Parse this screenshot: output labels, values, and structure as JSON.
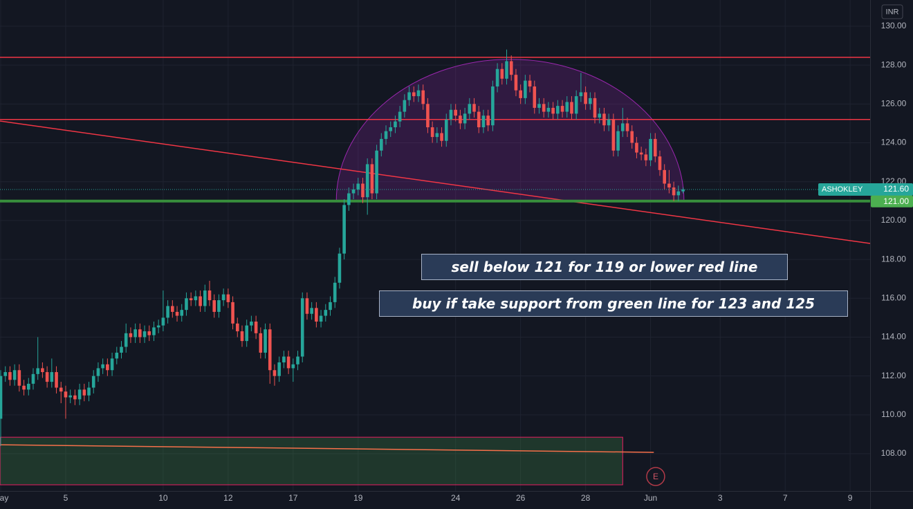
{
  "chart_data": {
    "type": "candlestick",
    "currency": "INR",
    "series": [
      {
        "name": "ASHOKLEY",
        "up_color": "#26a69a",
        "down_color": "#ef5350",
        "last_label": "121.60",
        "open": [
          109.8,
          112.0,
          112.2,
          111.8,
          112.3,
          111.5,
          111.3,
          111.6,
          112.1,
          112.4,
          112.2,
          111.7,
          112.2,
          111.4,
          111.2,
          110.9,
          111.0,
          110.8,
          111.3,
          111.0,
          111.4,
          112.0,
          112.4,
          112.6,
          112.3,
          112.9,
          113.2,
          113.5,
          114.2,
          114.0,
          114.4,
          114.0,
          114.3,
          114.1,
          114.5,
          114.6,
          115.0,
          115.6,
          115.3,
          115.1,
          115.4,
          116.0,
          115.9,
          116.1,
          115.6,
          116.4,
          115.9,
          115.3,
          115.9,
          116.2,
          115.8,
          114.7,
          114.3,
          113.8,
          114.6,
          114.8,
          114.2,
          113.2,
          114.4,
          112.3,
          112.0,
          112.7,
          113.0,
          112.4,
          112.6,
          113.0,
          116.0,
          115.2,
          115.5,
          114.8,
          115.1,
          115.4,
          115.8,
          116.8,
          118.3,
          120.8,
          121.4,
          121.6,
          121.9,
          121.2,
          122.9,
          121.4,
          123.6,
          124.2,
          124.6,
          124.8,
          125.1,
          125.6,
          126.2,
          126.6,
          126.4,
          126.7,
          126.0,
          124.8,
          124.3,
          124.5,
          124.1,
          125.2,
          125.7,
          125.4,
          125.0,
          125.5,
          126.0,
          125.6,
          124.8,
          125.4,
          124.9,
          126.9,
          127.8,
          127.3,
          128.2,
          127.5,
          126.7,
          126.3,
          127.2,
          126.9,
          125.8,
          126.0,
          125.6,
          125.8,
          125.5,
          125.9,
          125.6,
          126.1,
          125.5,
          126.4,
          126.6,
          126.0,
          126.3,
          125.3,
          125.5,
          124.9,
          125.2,
          123.6,
          124.6,
          125.0,
          124.6,
          124.0,
          123.5,
          123.4,
          123.1,
          124.2,
          123.3,
          122.6,
          121.9,
          121.7,
          121.3,
          121.5
        ],
        "high": [
          112.3,
          112.5,
          112.5,
          112.6,
          112.6,
          111.8,
          111.9,
          112.4,
          114.0,
          112.7,
          112.5,
          112.9,
          112.5,
          111.7,
          111.5,
          111.3,
          111.3,
          111.6,
          111.6,
          111.7,
          112.3,
          112.7,
          112.9,
          112.9,
          113.2,
          113.5,
          113.8,
          114.7,
          114.5,
          114.7,
          114.7,
          114.6,
          114.6,
          114.8,
          114.9,
          116.4,
          115.9,
          115.9,
          115.6,
          115.7,
          116.3,
          116.3,
          116.4,
          116.4,
          116.7,
          116.9,
          116.2,
          116.2,
          116.5,
          116.5,
          116.1,
          115.0,
          114.6,
          114.9,
          115.1,
          115.1,
          114.5,
          114.7,
          114.7,
          112.6,
          113.0,
          113.3,
          113.3,
          112.9,
          113.3,
          116.3,
          116.3,
          115.8,
          115.8,
          115.4,
          115.7,
          116.1,
          117.1,
          118.6,
          121.1,
          121.7,
          121.9,
          122.2,
          122.2,
          123.2,
          123.2,
          123.9,
          124.5,
          124.9,
          125.1,
          125.4,
          125.9,
          126.5,
          126.9,
          126.9,
          127.0,
          127.0,
          126.3,
          125.1,
          124.8,
          124.8,
          125.5,
          126.0,
          126.0,
          125.7,
          125.8,
          126.3,
          126.3,
          125.9,
          125.7,
          125.7,
          127.2,
          128.1,
          128.1,
          128.8,
          128.5,
          127.8,
          127.0,
          127.5,
          127.5,
          127.2,
          126.3,
          126.3,
          126.1,
          126.1,
          126.2,
          126.2,
          126.4,
          126.4,
          126.7,
          127.6,
          126.9,
          126.6,
          126.6,
          125.8,
          125.8,
          125.5,
          125.5,
          124.9,
          125.8,
          125.3,
          124.9,
          124.3,
          123.8,
          123.7,
          124.5,
          124.5,
          123.6,
          122.9,
          122.6,
          122.0,
          121.8,
          121.7
        ],
        "low": [
          108.4,
          111.7,
          111.5,
          111.5,
          111.2,
          111.0,
          111.0,
          111.3,
          111.8,
          111.9,
          111.4,
          111.4,
          111.1,
          110.6,
          109.8,
          110.6,
          110.5,
          110.5,
          110.7,
          110.7,
          111.1,
          111.7,
          112.1,
          112.0,
          112.0,
          112.6,
          112.9,
          113.2,
          113.7,
          113.7,
          113.7,
          113.7,
          113.8,
          113.8,
          114.2,
          114.3,
          114.7,
          115.0,
          114.8,
          114.8,
          115.1,
          115.6,
          115.6,
          115.3,
          115.3,
          115.6,
          115.0,
          115.0,
          115.6,
          115.5,
          114.4,
          114.0,
          113.5,
          113.5,
          114.3,
          113.9,
          112.9,
          112.9,
          111.6,
          111.5,
          111.7,
          112.4,
          112.1,
          111.7,
          112.3,
          112.7,
          114.9,
          114.9,
          114.5,
          114.5,
          114.8,
          115.1,
          115.5,
          116.5,
          118.0,
          120.5,
          121.1,
          121.3,
          120.9,
          120.3,
          121.1,
          121.1,
          123.3,
          123.9,
          124.3,
          124.5,
          124.8,
          125.3,
          125.9,
          126.1,
          126.1,
          125.7,
          124.5,
          124.0,
          124.0,
          123.8,
          123.8,
          124.9,
          125.1,
          124.7,
          124.7,
          125.2,
          125.3,
          124.5,
          124.5,
          124.6,
          124.6,
          126.6,
          127.0,
          127.0,
          127.2,
          126.4,
          126.0,
          126.0,
          126.6,
          125.5,
          125.5,
          125.3,
          125.3,
          125.2,
          125.2,
          125.3,
          125.3,
          125.2,
          125.2,
          126.1,
          125.7,
          125.7,
          125.0,
          125.0,
          124.6,
          124.6,
          123.3,
          123.3,
          124.3,
          124.3,
          123.7,
          123.2,
          123.1,
          122.8,
          122.8,
          123.0,
          122.3,
          121.6,
          121.4,
          121.0,
          121.0,
          121.4
        ],
        "close": [
          112.0,
          112.2,
          111.8,
          112.3,
          111.5,
          111.3,
          111.6,
          112.1,
          112.4,
          112.2,
          111.7,
          112.2,
          111.4,
          111.2,
          110.9,
          111.0,
          110.8,
          111.3,
          111.0,
          111.4,
          112.0,
          112.4,
          112.6,
          112.3,
          112.9,
          113.2,
          113.5,
          114.2,
          114.0,
          114.4,
          114.0,
          114.3,
          114.1,
          114.5,
          114.6,
          115.0,
          115.6,
          115.3,
          115.1,
          115.4,
          116.0,
          115.9,
          116.1,
          115.6,
          116.4,
          115.9,
          115.3,
          115.9,
          116.2,
          115.8,
          114.7,
          114.3,
          113.8,
          114.6,
          114.8,
          114.2,
          113.2,
          114.4,
          112.3,
          112.0,
          112.7,
          113.0,
          112.4,
          112.6,
          113.0,
          116.0,
          115.2,
          115.5,
          114.8,
          115.1,
          115.4,
          115.8,
          116.8,
          118.3,
          120.8,
          121.4,
          121.6,
          121.9,
          121.2,
          122.9,
          121.4,
          123.6,
          124.2,
          124.6,
          124.8,
          125.1,
          125.6,
          126.2,
          126.6,
          126.4,
          126.7,
          126.0,
          124.8,
          124.3,
          124.5,
          124.1,
          125.2,
          125.7,
          125.4,
          125.0,
          125.5,
          126.0,
          125.6,
          124.8,
          125.4,
          124.9,
          126.9,
          127.8,
          127.3,
          128.2,
          127.5,
          126.7,
          126.3,
          127.2,
          126.9,
          125.8,
          126.0,
          125.6,
          125.8,
          125.5,
          125.9,
          125.6,
          126.1,
          125.5,
          126.4,
          126.6,
          126.0,
          126.3,
          125.3,
          125.5,
          124.9,
          125.2,
          123.6,
          124.6,
          125.0,
          124.6,
          124.0,
          123.5,
          123.4,
          123.1,
          124.2,
          123.3,
          122.6,
          121.9,
          121.7,
          121.3,
          121.5,
          121.6
        ]
      }
    ],
    "xlim": [
      -0.15,
      187.3
    ],
    "ylim": [
      106.08,
      131.35
    ],
    "xticks": [
      {
        "value": 0,
        "label": "May"
      },
      {
        "value": 14,
        "label": "5"
      },
      {
        "value": 35,
        "label": "10"
      },
      {
        "value": 49,
        "label": "12"
      },
      {
        "value": 63,
        "label": "17"
      },
      {
        "value": 77,
        "label": "19"
      },
      {
        "value": 98,
        "label": "24"
      },
      {
        "value": 112,
        "label": "26"
      },
      {
        "value": 126,
        "label": "28"
      },
      {
        "value": 140,
        "label": "Jun"
      },
      {
        "value": 155,
        "label": "3"
      },
      {
        "value": 169,
        "label": "7"
      },
      {
        "value": 183,
        "label": "9"
      }
    ],
    "yticks": [
      {
        "value": 108,
        "label": "108.00"
      },
      {
        "value": 110,
        "label": "110.00"
      },
      {
        "value": 112,
        "label": "112.00"
      },
      {
        "value": 114,
        "label": "114.00"
      },
      {
        "value": 116,
        "label": "116.00"
      },
      {
        "value": 118,
        "label": "118.00"
      },
      {
        "value": 120,
        "label": "120.00"
      },
      {
        "value": 122,
        "label": "122.00"
      },
      {
        "value": 124,
        "label": "124.00"
      },
      {
        "value": 126,
        "label": "126.00"
      },
      {
        "value": 128,
        "label": "128.00"
      },
      {
        "value": 130,
        "label": "130.00"
      }
    ],
    "grid": true,
    "drawings": {
      "horizontal_lines": [
        {
          "value": 128.4,
          "color": "#f23645"
        },
        {
          "value": 125.2,
          "color": "#f23645"
        }
      ],
      "support": {
        "value": 121,
        "label": "121.00",
        "color": "#388e3c"
      },
      "trend_lines": [
        {
          "x": [
            -0.15,
            187.3
          ],
          "y": [
            125.12,
            118.82
          ],
          "color": "#f23645"
        },
        {
          "x": [
            -0.15,
            140.7
          ],
          "y": [
            108.46,
            108.07
          ],
          "color": "#f7704a"
        }
      ],
      "rectangle": {
        "x": [
          -0.15,
          134
        ],
        "y": [
          106.4,
          108.85
        ],
        "color": "#e91e63"
      },
      "arc": {
        "x": [
          72.3,
          147.2
        ],
        "base": 121.0,
        "top": 128.3,
        "color": "#9c27b0"
      }
    },
    "annotations": [
      "sell below 121 for 119 or lower red line",
      "buy if take support from green line for 123 and 125"
    ],
    "earnings_marker": {
      "x": 141.1,
      "label": "E"
    }
  }
}
